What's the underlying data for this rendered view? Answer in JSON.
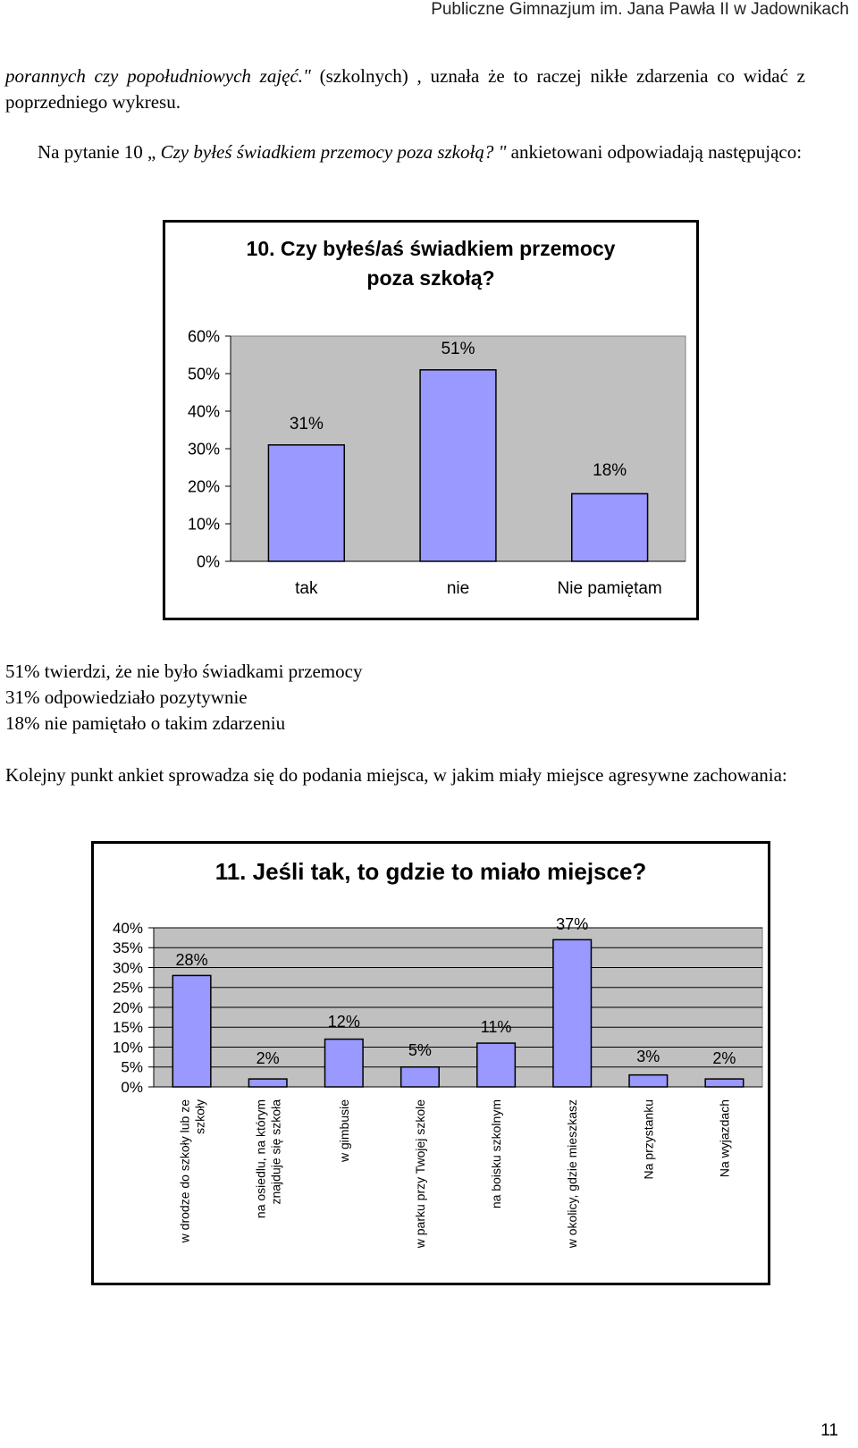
{
  "header": "Publiczne Gimnazjum im. Jana Pawła II w Jadownikach",
  "para1": {
    "italic": "porannych czy popołudniowych zajęć.\"",
    "rest": " (szkolnych) , uznała że to raczej nikłe zdarzenia co widać z poprzedniego wykresu."
  },
  "para2": {
    "before": "Na pytanie 10 „ ",
    "italic": "Czy byłeś świadkiem przemocy poza szkołą? \"",
    "after": " ankietowani odpowiadają następująco:"
  },
  "chart1_title": [
    "10. Czy byłeś/aś świadkiem przemocy",
    "poza szkołą?"
  ],
  "summary_lines": [
    "51% twierdzi, że nie było świadkami przemocy",
    "31% odpowiedziało pozytywnie",
    "18% nie pamiętało o takim zdarzeniu"
  ],
  "para3": "Kolejny punkt ankiet sprowadza się do podania miejsca, w jakim miały miejsce agresywne zachowania:",
  "chart2_title": "11. Jeśli tak, to gdzie to miało miejsce?",
  "page_number": "11",
  "colors": {
    "bar": "#9999ff",
    "plot_bg": "#c0c0c0",
    "gridline": "#000000"
  },
  "chart_data": [
    {
      "type": "bar",
      "title": "10. Czy byłeś/aś świadkiem przemocy poza szkołą?",
      "categories": [
        "tak",
        "nie",
        "Nie pamiętam"
      ],
      "values": [
        31,
        51,
        18
      ],
      "data_labels": [
        "31%",
        "51%",
        "18%"
      ],
      "ytick_labels": [
        "0%",
        "10%",
        "20%",
        "30%",
        "40%",
        "50%",
        "60%"
      ],
      "ylim": [
        0,
        60
      ],
      "yticks": [
        0,
        10,
        20,
        30,
        40,
        50,
        60
      ],
      "grid": false,
      "xlabel": "",
      "ylabel": ""
    },
    {
      "type": "bar",
      "title": "11. Jeśli tak, to gdzie to miało miejsce?",
      "categories": [
        "w drodze do szkoły lub ze szkoły",
        "na osiedlu, na którym znajduje się szkoła",
        "w gimbusie",
        "w parku przy Twojej szkole",
        "na boisku szkolnym",
        "w okolicy, gdzie mieszkasz",
        "Na przystanku",
        "Na wyjazdach"
      ],
      "category_lines": [
        [
          "w drodze do szkoły lub ze",
          "szkoły"
        ],
        [
          "na osiedlu, na którym",
          "znajduje się szkoła"
        ],
        [
          "w gimbusie"
        ],
        [
          "w parku przy Twojej szkole"
        ],
        [
          "na boisku szkolnym"
        ],
        [
          "w okolicy, gdzie mieszkasz"
        ],
        [
          "Na przystanku"
        ],
        [
          "Na wyjazdach"
        ]
      ],
      "values": [
        28,
        2,
        12,
        5,
        11,
        37,
        3,
        2
      ],
      "data_labels": [
        "28%",
        "2%",
        "12%",
        "5%",
        "11%",
        "37%",
        "3%",
        "2%"
      ],
      "ytick_labels": [
        "0%",
        "5%",
        "10%",
        "15%",
        "20%",
        "25%",
        "30%",
        "35%",
        "40%"
      ],
      "ylim": [
        0,
        40
      ],
      "yticks": [
        0,
        5,
        10,
        15,
        20,
        25,
        30,
        35,
        40
      ],
      "grid": true,
      "xlabel": "",
      "ylabel": ""
    }
  ]
}
